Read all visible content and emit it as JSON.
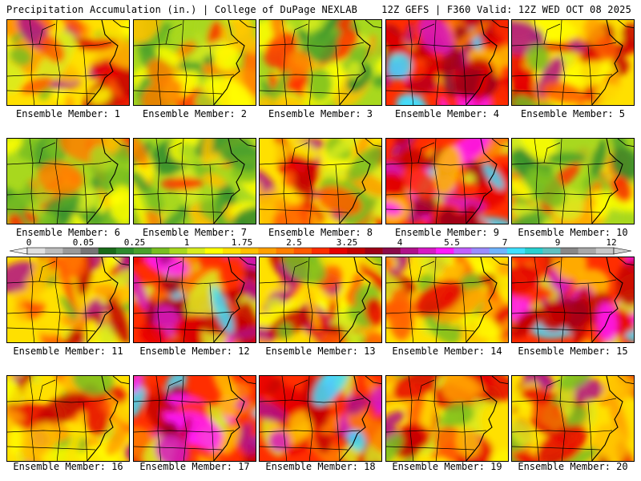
{
  "header": {
    "title_left": "Precipitation Accumulation (in.) | College of DuPage NEXLAB",
    "title_right": "12Z GEFS | F360 Valid: 12Z WED OCT 08 2025"
  },
  "panels": [
    {
      "label": "Ensemble Member: 1",
      "scheme": "warm"
    },
    {
      "label": "Ensemble Member: 2",
      "scheme": "green"
    },
    {
      "label": "Ensemble Member: 3",
      "scheme": "green"
    },
    {
      "label": "Ensemble Member: 4",
      "scheme": "hot"
    },
    {
      "label": "Ensemble Member: 5",
      "scheme": "warm"
    },
    {
      "label": "Ensemble Member: 6",
      "scheme": "green"
    },
    {
      "label": "Ensemble Member: 7",
      "scheme": "green"
    },
    {
      "label": "Ensemble Member: 8",
      "scheme": "warm"
    },
    {
      "label": "Ensemble Member: 9",
      "scheme": "hot"
    },
    {
      "label": "Ensemble Member: 10",
      "scheme": "green"
    },
    {
      "label": "Ensemble Member: 11",
      "scheme": "warm"
    },
    {
      "label": "Ensemble Member: 12",
      "scheme": "hot"
    },
    {
      "label": "Ensemble Member: 13",
      "scheme": "warm"
    },
    {
      "label": "Ensemble Member: 14",
      "scheme": "warm"
    },
    {
      "label": "Ensemble Member: 15",
      "scheme": "hot"
    },
    {
      "label": "Ensemble Member: 16",
      "scheme": "warm"
    },
    {
      "label": "Ensemble Member: 17",
      "scheme": "hot"
    },
    {
      "label": "Ensemble Member: 18",
      "scheme": "hot"
    },
    {
      "label": "Ensemble Member: 19",
      "scheme": "warm"
    },
    {
      "label": "Ensemble Member: 20",
      "scheme": "warm"
    }
  ],
  "colorbar": {
    "labels": [
      "0",
      "0.05",
      "0.25",
      "1",
      "1.75",
      "2.5",
      "3.25",
      "4",
      "5.5",
      "7",
      "9",
      "12"
    ],
    "colors": [
      "#e0e0e0",
      "#bdbdbd",
      "#9a9a9a",
      "#767676",
      "#1a6b1a",
      "#2e8b2e",
      "#4aa02c",
      "#78be21",
      "#a8d81e",
      "#d8ec1e",
      "#ffff00",
      "#ffe000",
      "#ffc000",
      "#ff9f00",
      "#ff7f00",
      "#ff5a00",
      "#ff2e00",
      "#e60000",
      "#c40000",
      "#9e0016",
      "#8b0a4a",
      "#b0108a",
      "#d61ac4",
      "#ff1aff",
      "#c060ff",
      "#9a8cff",
      "#6fb4ff",
      "#3fe0ff",
      "#28d0d0",
      "#60c0c0",
      "#888888",
      "#a8a8a8",
      "#c8c8c8"
    ]
  }
}
